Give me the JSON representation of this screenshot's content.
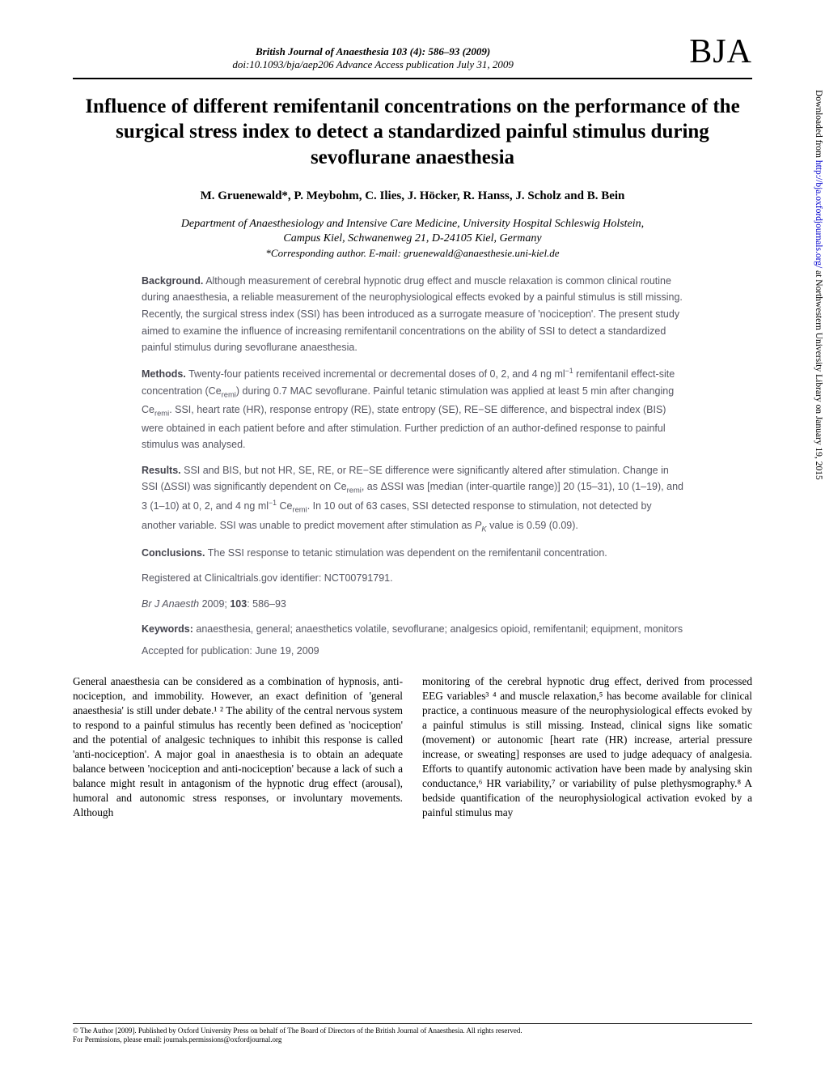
{
  "header": {
    "journal_ref": "British Journal of Anaesthesia 103 (4): 586–93 (2009)",
    "doi_line": "doi:10.1093/bja/aep206   Advance Access publication July 31, 2009",
    "logo_text": "BJA"
  },
  "article": {
    "title": "Influence of different remifentanil concentrations on the performance of the surgical stress index to detect a standardized painful stimulus during sevoflurane anaesthesia",
    "authors": "M. Gruenewald*, P. Meybohm, C. Ilies, J. Höcker, R. Hanss, J. Scholz and B. Bein",
    "affiliation_line1": "Department of Anaesthesiology and Intensive Care Medicine, University Hospital Schleswig Holstein,",
    "affiliation_line2": "Campus Kiel, Schwanenweg 21, D-24105 Kiel, Germany",
    "corresponding": "*Corresponding author. E-mail: gruenewald@anaesthesie.uni-kiel.de"
  },
  "abstract": {
    "background_lead": "Background.",
    "background": " Although measurement of cerebral hypnotic drug effect and muscle relaxation is common clinical routine during anaesthesia, a reliable measurement of the neurophysiological effects evoked by a painful stimulus is still missing. Recently, the surgical stress index (SSI) has been introduced as a surrogate measure of 'nociception'. The present study aimed to examine the influence of increasing remifentanil concentrations on the ability of SSI to detect a standardized painful stimulus during sevoflurane anaesthesia.",
    "methods_lead": "Methods.",
    "methods_pre": " Twenty-four patients received incremental or decremental doses of 0, 2, and 4 ng ml",
    "methods_mid": " remifentanil effect-site concentration (Ce",
    "methods_mid2": ") during 0.7 MAC sevoflurane. Painful tetanic stimulation was applied at least 5 min after changing Ce",
    "methods_post": ". SSI, heart rate (HR), response entropy (RE), state entropy (SE), RE−SE difference, and bispectral index (BIS) were obtained in each patient before and after stimulation. Further prediction of an author-defined response to painful stimulus was analysed.",
    "results_lead": "Results.",
    "results_pre": " SSI and BIS, but not HR, SE, RE, or RE−SE difference were significantly altered after stimulation. Change in SSI (ΔSSI) was significantly dependent on Ce",
    "results_mid": ", as ΔSSI was [median (inter-quartile range)] 20 (15–31), 10 (1–19), and 3 (1–10) at 0, 2, and 4 ng ml",
    "results_mid2": " Ce",
    "results_post": ". In 10 out of 63 cases, SSI detected response to stimulation, not detected by another variable. SSI was unable to predict movement after stimulation as ",
    "results_pk": " value is 0.59 (0.09).",
    "conclusions_lead": "Conclusions.",
    "conclusions": " The SSI response to tetanic stimulation was dependent on the remifentanil concentration.",
    "registration": "Registered at Clinicaltrials.gov identifier: NCT00791791.",
    "citation": "Br J Anaesth 2009; 103: 586–93",
    "keywords_lead": "Keywords:",
    "keywords": " anaesthesia, general; anaesthetics volatile, sevoflurane; analgesics opioid, remifentanil; equipment, monitors",
    "accepted": "Accepted for publication: June 19, 2009"
  },
  "body": {
    "col1": "General anaesthesia can be considered as a combination of hypnosis, anti-nociception, and immobility. However, an exact definition of 'general anaesthesia' is still under debate.¹ ² The ability of the central nervous system to respond to a painful stimulus has recently been defined as 'nociception' and the potential of analgesic techniques to inhibit this response is called 'anti-nociception'. A major goal in anaesthesia is to obtain an adequate balance between 'nociception and anti-nociception' because a lack of such a balance might result in antagonism of the hypnotic drug effect (arousal), humoral and autonomic stress responses, or involuntary movements. Although",
    "col2": "monitoring of the cerebral hypnotic drug effect, derived from processed EEG variables³ ⁴ and muscle relaxation,⁵ has become available for clinical practice, a continuous measure of the neurophysiological effects evoked by a painful stimulus is still missing. Instead, clinical signs like somatic (movement) or autonomic [heart rate (HR) increase, arterial pressure increase, or sweating] responses are used to judge adequacy of analgesia. Efforts to quantify autonomic activation have been made by analysing skin conductance,⁶ HR variability,⁷ or variability of pulse plethysmography.⁸ A bedside quantification of the neurophysiological activation evoked by a painful stimulus may"
  },
  "footer": {
    "copyright": "© The Author [2009]. Published by Oxford University Press on behalf of The Board of Directors of the British Journal of Anaesthesia. All rights reserved.",
    "permissions": "For Permissions, please email: journals.permissions@oxfordjournal.org"
  },
  "side": {
    "prefix": "Downloaded from ",
    "link": "http://bja.oxfordjournals.org/",
    "suffix": " at Northwestern University Library on January 19, 2015"
  }
}
